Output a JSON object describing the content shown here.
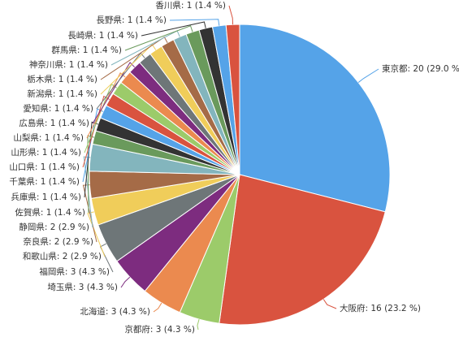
{
  "chart_data": {
    "type": "pie",
    "categories": [
      "東京都",
      "大阪府",
      "京都府",
      "北海道",
      "埼玉県",
      "福岡県",
      "和歌山県",
      "奈良県",
      "静岡県",
      "佐賀県",
      "兵庫県",
      "千葉県",
      "山口県",
      "山形県",
      "山梨県",
      "広島県",
      "愛知県",
      "新潟県",
      "栃木県",
      "神奈川県",
      "群馬県",
      "長崎県",
      "長野県",
      "香川県"
    ],
    "values": [
      20,
      16,
      3,
      3,
      3,
      3,
      2,
      2,
      2,
      1,
      1,
      1,
      1,
      1,
      1,
      1,
      1,
      1,
      1,
      1,
      1,
      1,
      1,
      1
    ],
    "value_labels": [
      ": 20 (29.0 %)",
      ": 16 (23.2 %)",
      ": 3 (4.3 %)",
      ": 3 (4.3 %)",
      ": 3 (4.3 %)",
      ": 3 (4.3 %)",
      ": 2 (2.9 %)",
      ": 2 (2.9 %)",
      ": 2 (2.9 %)",
      ": 1 (1.4 %)",
      ": 1 (1.4 %)",
      ": 1 (1.4 %)",
      ": 1 (1.4 %)",
      ": 1 (1.4 %)",
      ": 1 (1.4 %)",
      ": 1 (1.4 %)",
      ": 1 (1.4 %)",
      ": 1 (1.4 %)",
      ": 1 (1.4 %)",
      ": 1 (1.4 %)",
      ": 1 (1.4 %)",
      ": 1 (1.4 %)",
      ": 1 (1.4 %)",
      ": 1 (1.4 %)"
    ],
    "colors": [
      "#55a3e8",
      "#d9533f",
      "#9ccb6a",
      "#eb8a4f",
      "#7d2c7f",
      "#6e7678",
      "#f0cd5a",
      "#a56b47",
      "#83b5bd",
      "#6a9a5c",
      "#333333",
      "#55a3e8",
      "#d9533f",
      "#9ccb6a",
      "#eb8a4f",
      "#7d2c7f",
      "#6e7678",
      "#f0cd5a",
      "#a56b47",
      "#83b5bd",
      "#6a9a5c",
      "#333333",
      "#55a3e8",
      "#d9533f"
    ]
  }
}
